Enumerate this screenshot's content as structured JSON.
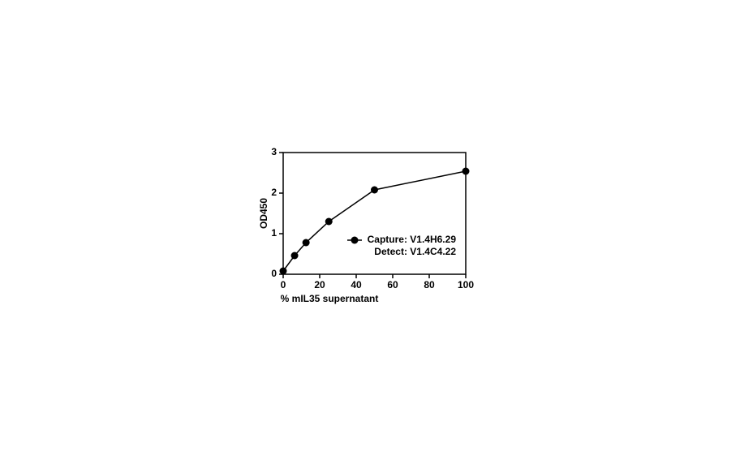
{
  "chart_data": {
    "type": "line",
    "x": [
      0,
      6.25,
      12.5,
      25,
      50,
      100
    ],
    "series": [
      {
        "name": "Capture: V1.4H6.29\nDetect: V1.4C4.22",
        "color": "#000000",
        "values": [
          0.08,
          0.46,
          0.78,
          1.3,
          2.08,
          2.54
        ]
      }
    ],
    "xlabel": "% mIL35 supernatant",
    "ylabel": "OD450",
    "xlim": [
      0,
      100
    ],
    "xticks": [
      0,
      20,
      40,
      60,
      80,
      100
    ],
    "ylim": [
      0,
      3
    ],
    "yticks": [
      0,
      1,
      2,
      3
    ],
    "grid": false
  }
}
